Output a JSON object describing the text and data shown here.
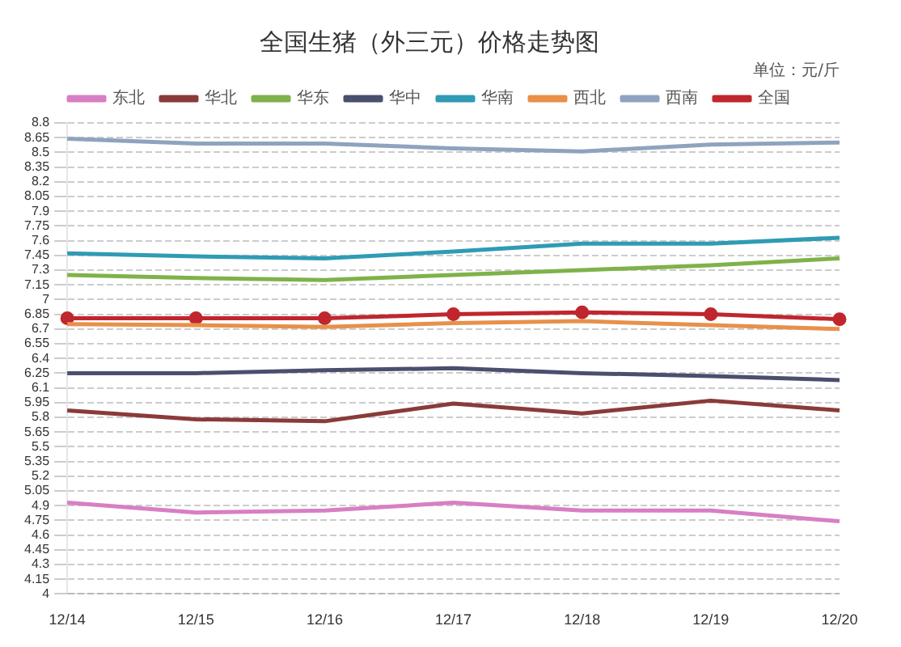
{
  "chart_data": {
    "type": "line",
    "title": "全国生猪（外三元）价格走势图",
    "annotations": [
      "单位：元/斤"
    ],
    "categories": [
      "12/14",
      "12/15",
      "12/16",
      "12/17",
      "12/18",
      "12/19",
      "12/20"
    ],
    "series": [
      {
        "name": "东北",
        "color": "#d77fc4",
        "values": [
          4.93,
          4.83,
          4.85,
          4.93,
          4.85,
          4.85,
          4.74
        ]
      },
      {
        "name": "华北",
        "color": "#8b3a3a",
        "values": [
          5.87,
          5.78,
          5.76,
          5.94,
          5.84,
          5.97,
          5.87
        ]
      },
      {
        "name": "华东",
        "color": "#7fb24a",
        "values": [
          7.25,
          7.22,
          7.2,
          7.25,
          7.3,
          7.35,
          7.42
        ]
      },
      {
        "name": "华中",
        "color": "#4b4f6e",
        "values": [
          6.25,
          6.25,
          6.28,
          6.3,
          6.25,
          6.22,
          6.18
        ]
      },
      {
        "name": "华南",
        "color": "#2f9bb5",
        "values": [
          7.47,
          7.44,
          7.42,
          7.49,
          7.57,
          7.57,
          7.63
        ]
      },
      {
        "name": "西北",
        "color": "#e8904a",
        "values": [
          6.75,
          6.74,
          6.72,
          6.76,
          6.78,
          6.74,
          6.7
        ]
      },
      {
        "name": "西南",
        "color": "#8fa3bf",
        "values": [
          8.64,
          8.59,
          8.59,
          8.54,
          8.51,
          8.58,
          8.6
        ]
      },
      {
        "name": "全国",
        "color": "#c0262d",
        "marker": "circle",
        "values": [
          6.81,
          6.81,
          6.81,
          6.85,
          6.87,
          6.85,
          6.8
        ]
      }
    ],
    "ylim": [
      4,
      8.8
    ],
    "yticks": [
      4,
      4.15,
      4.3,
      4.45,
      4.6,
      4.75,
      4.9,
      5.05,
      5.2,
      5.35,
      5.5,
      5.65,
      5.8,
      5.95,
      6.1,
      6.25,
      6.4,
      6.55,
      6.7,
      6.85,
      7,
      7.15,
      7.3,
      7.45,
      7.6,
      7.75,
      7.9,
      8.05,
      8.2,
      8.35,
      8.5,
      8.65,
      8.8
    ],
    "grid": "y",
    "legend": "top",
    "marker": "none",
    "line_style": "solid"
  }
}
